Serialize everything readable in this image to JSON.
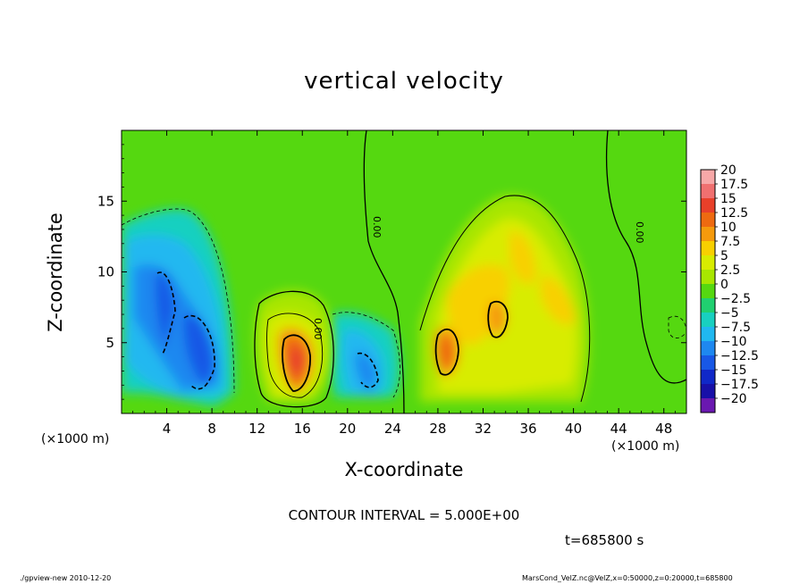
{
  "chart_data": {
    "type": "heatmap",
    "title": "vertical velocity",
    "xlabel": "X-coordinate",
    "ylabel": "Z-coordinate",
    "x_unit": "(×1000 m)",
    "xlim": [
      0,
      50
    ],
    "ylim": [
      0,
      20
    ],
    "x_ticks": [
      4,
      8,
      12,
      16,
      20,
      24,
      28,
      32,
      36,
      40,
      44,
      48
    ],
    "y_ticks": [
      5,
      10,
      15
    ],
    "colorbar": {
      "levels": [
        20,
        17.5,
        15,
        12.5,
        10,
        7.5,
        5,
        2.5,
        0,
        -2.5,
        -5,
        -7.5,
        -10,
        -12.5,
        -15,
        -17.5,
        -20
      ],
      "labels": [
        "20",
        "17.5",
        "15",
        "12.5",
        "10",
        "7.5",
        "5",
        "2.5",
        "0",
        "−2.5",
        "−5",
        "−7.5",
        "−10",
        "−12.5",
        "−15",
        "−17.5",
        "−20"
      ],
      "colors": [
        "#f7a8a8",
        "#f07070",
        "#e8402a",
        "#ee6a10",
        "#f59a0c",
        "#f8d000",
        "#d8ec00",
        "#a8e600",
        "#55d810",
        "#20d070",
        "#18d0c0",
        "#20b8f0",
        "#1e88f0",
        "#1858e6",
        "#1028c8",
        "#1810a8",
        "#6a18b0"
      ]
    },
    "contour_labels": [
      "0.00",
      "0.00",
      "0.00"
    ],
    "contour_interval": "CONTOUR INTERVAL = 5.000E+00",
    "time_label": "t=685800 s",
    "features": [
      {
        "x": 6,
        "z": 7,
        "w": -10
      },
      {
        "x": 15.5,
        "z": 3.8,
        "w": 15
      },
      {
        "x": 21.5,
        "z": 3.5,
        "w": -8
      },
      {
        "x": 28.8,
        "z": 4.5,
        "w": 10
      },
      {
        "x": 33.2,
        "z": 7,
        "w": 10
      },
      {
        "x": 36,
        "z": 9,
        "w": 6
      }
    ]
  },
  "footer": {
    "left": "./gpview-new   2010-12-20",
    "right": "MarsCond_VelZ.nc@VelZ,x=0:50000,z=0:20000,t=685800"
  }
}
